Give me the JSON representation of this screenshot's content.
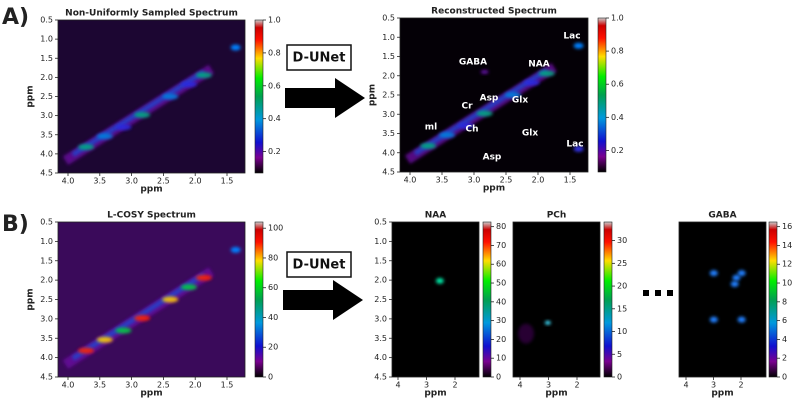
{
  "panels": [
    {
      "label": "A)",
      "arrow_label": "D-UNet",
      "plots": [
        {
          "title": "Non-Uniformly Sampled Spectrum",
          "xlabel": "ppm",
          "ylabel": "ppm",
          "xticks": [
            "4.0",
            "3.5",
            "3.0",
            "2.5",
            "2.0",
            "1.5"
          ],
          "yticks": [
            "0.5",
            "1.0",
            "1.5",
            "2.0",
            "2.5",
            "3.0",
            "3.5",
            "4.0",
            "4.5"
          ],
          "colorbar_ticks": [
            "1.0",
            "0.8",
            "0.6",
            "0.4",
            "0.2"
          ]
        },
        {
          "title": "Reconstructed Spectrum",
          "xlabel": "ppm",
          "ylabel": "ppm",
          "xticks": [
            "4.0",
            "3.5",
            "3.0",
            "2.5",
            "2.0",
            "1.5"
          ],
          "yticks": [
            "0.5",
            "1.0",
            "1.5",
            "2.0",
            "2.5",
            "3.0",
            "3.5",
            "4.0",
            "4.5"
          ],
          "colorbar_ticks": [
            "1.0",
            "0.8",
            "0.6",
            "0.4",
            "0.2"
          ],
          "annotations": [
            "Lac",
            "GABA",
            "NAA",
            "Asp",
            "Glx",
            "Cr",
            "ml",
            "Ch",
            "Glx",
            "Lac",
            "Asp"
          ]
        }
      ]
    },
    {
      "label": "B)",
      "arrow_label": "D-UNet",
      "plots": [
        {
          "title": "L-COSY Spectrum",
          "xlabel": "ppm",
          "ylabel": "ppm",
          "xticks": [
            "4.0",
            "3.5",
            "3.0",
            "2.5",
            "2.0",
            "1.5"
          ],
          "yticks": [
            "0.5",
            "1.0",
            "1.5",
            "2.0",
            "2.5",
            "3.0",
            "3.5",
            "4.0",
            "4.5"
          ],
          "colorbar_ticks": [
            "100",
            "80",
            "60",
            "40",
            "20",
            "0"
          ]
        },
        {
          "title": "NAA",
          "xlabel": "ppm",
          "xticks": [
            "4",
            "3",
            "2"
          ],
          "yticks": [
            "0.5",
            "1.0",
            "1.5",
            "2.0",
            "2.5",
            "3.0",
            "3.5",
            "4.0",
            "4.5"
          ],
          "colorbar_ticks": [
            "80",
            "70",
            "60",
            "50",
            "40",
            "30",
            "20",
            "10",
            "0"
          ]
        },
        {
          "title": "PCh",
          "xlabel": "ppm",
          "xticks": [
            "4",
            "3",
            "2"
          ],
          "colorbar_ticks": [
            "30",
            "25",
            "20",
            "15",
            "10",
            "5",
            "0"
          ]
        },
        {
          "title": "GABA",
          "xlabel": "ppm",
          "xticks": [
            "4",
            "3",
            "2"
          ],
          "colorbar_ticks": [
            "16",
            "14",
            "12",
            "10",
            "8",
            "6",
            "4",
            "2",
            "0"
          ]
        }
      ]
    }
  ]
}
